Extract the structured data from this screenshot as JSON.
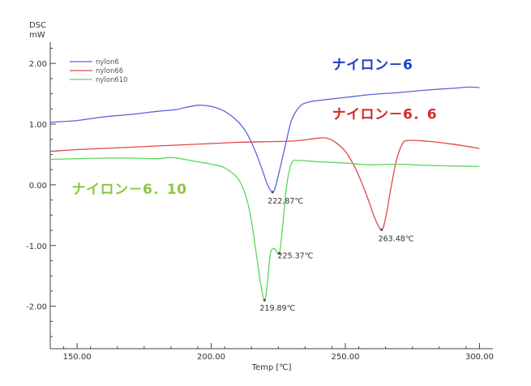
{
  "chart_data": {
    "type": "line",
    "y_unit_line1": "DSC",
    "y_unit_line2": "mW",
    "xlabel": "Temp [℃]",
    "xlim": [
      140,
      305
    ],
    "ylim": [
      -2.7,
      2.35
    ],
    "x_ticks": [
      {
        "value": 150,
        "label": "150.00"
      },
      {
        "value": 200,
        "label": "200.00"
      },
      {
        "value": 250,
        "label": "250.00"
      },
      {
        "value": 300,
        "label": "300.00"
      }
    ],
    "y_ticks": [
      {
        "value": 2,
        "label": "2.00"
      },
      {
        "value": 1,
        "label": "1.00"
      },
      {
        "value": 0,
        "label": "0.00"
      },
      {
        "value": -1,
        "label": "-1.00"
      },
      {
        "value": -2,
        "label": "-2.00"
      }
    ],
    "legend_position": "top-left",
    "series": [
      {
        "name": "nylon6",
        "color": "#5a64dc",
        "points": [
          [
            140,
            1.03
          ],
          [
            150,
            1.06
          ],
          [
            160,
            1.12
          ],
          [
            170,
            1.16
          ],
          [
            180,
            1.21
          ],
          [
            187,
            1.24
          ],
          [
            190,
            1.27
          ],
          [
            195,
            1.31
          ],
          [
            200,
            1.29
          ],
          [
            205,
            1.21
          ],
          [
            210,
            1.04
          ],
          [
            213,
            0.87
          ],
          [
            216,
            0.6
          ],
          [
            219,
            0.25
          ],
          [
            221,
            0.0
          ],
          [
            222.87,
            -0.12
          ],
          [
            224,
            -0.02
          ],
          [
            226,
            0.34
          ],
          [
            228,
            0.72
          ],
          [
            230,
            1.07
          ],
          [
            233,
            1.29
          ],
          [
            236,
            1.36
          ],
          [
            240,
            1.39
          ],
          [
            250,
            1.44
          ],
          [
            260,
            1.49
          ],
          [
            270,
            1.52
          ],
          [
            280,
            1.56
          ],
          [
            290,
            1.59
          ],
          [
            296,
            1.61
          ],
          [
            300,
            1.6
          ]
        ]
      },
      {
        "name": "nylon66",
        "color": "#e04848",
        "points": [
          [
            140,
            0.55
          ],
          [
            150,
            0.58
          ],
          [
            160,
            0.6
          ],
          [
            170,
            0.62
          ],
          [
            180,
            0.64
          ],
          [
            190,
            0.66
          ],
          [
            200,
            0.68
          ],
          [
            210,
            0.7
          ],
          [
            220,
            0.71
          ],
          [
            230,
            0.72
          ],
          [
            235,
            0.74
          ],
          [
            240,
            0.77
          ],
          [
            243,
            0.77
          ],
          [
            246,
            0.71
          ],
          [
            250,
            0.55
          ],
          [
            254,
            0.25
          ],
          [
            258,
            -0.18
          ],
          [
            261,
            -0.55
          ],
          [
            263.48,
            -0.74
          ],
          [
            265,
            -0.55
          ],
          [
            267,
            -0.05
          ],
          [
            269,
            0.4
          ],
          [
            271,
            0.65
          ],
          [
            273,
            0.73
          ],
          [
            280,
            0.72
          ],
          [
            290,
            0.67
          ],
          [
            300,
            0.6
          ]
        ]
      },
      {
        "name": "nylon610",
        "color": "#5cd65c",
        "points": [
          [
            140,
            0.42
          ],
          [
            150,
            0.43
          ],
          [
            160,
            0.44
          ],
          [
            170,
            0.44
          ],
          [
            180,
            0.43
          ],
          [
            185,
            0.45
          ],
          [
            190,
            0.42
          ],
          [
            195,
            0.38
          ],
          [
            200,
            0.34
          ],
          [
            205,
            0.28
          ],
          [
            210,
            0.1
          ],
          [
            213,
            -0.2
          ],
          [
            215,
            -0.6
          ],
          [
            217,
            -1.2
          ],
          [
            218.5,
            -1.65
          ],
          [
            219.89,
            -1.9
          ],
          [
            221,
            -1.6
          ],
          [
            222,
            -1.15
          ],
          [
            223,
            -1.05
          ],
          [
            224,
            -1.07
          ],
          [
            225.37,
            -1.13
          ],
          [
            226.5,
            -0.75
          ],
          [
            228,
            -0.05
          ],
          [
            230,
            0.36
          ],
          [
            233,
            0.4
          ],
          [
            240,
            0.38
          ],
          [
            250,
            0.36
          ],
          [
            255,
            0.34
          ],
          [
            260,
            0.33
          ],
          [
            270,
            0.34
          ],
          [
            280,
            0.32
          ],
          [
            290,
            0.31
          ],
          [
            300,
            0.3
          ]
        ]
      }
    ],
    "peak_labels": [
      {
        "text": "222.87℃",
        "x": 222.87,
        "y": -0.12
      },
      {
        "text": "263.48℃",
        "x": 263.48,
        "y": -0.74
      },
      {
        "text": "225.37℃",
        "x": 225.37,
        "y": -1.13
      },
      {
        "text": "219.89℃",
        "x": 219.89,
        "y": -1.9
      }
    ],
    "annotations": [
      {
        "text": "ナイロン－6",
        "color": "#1e3ec8",
        "anchor_x": 245,
        "anchor_y": 1.9
      },
      {
        "text": "ナイロン－6．6",
        "color": "#d62828",
        "anchor_x": 245,
        "anchor_y": 1.09
      },
      {
        "text": "ナイロン－6．10",
        "color": "#8cc63f",
        "anchor_x": 148,
        "anchor_y": -0.15
      }
    ]
  }
}
